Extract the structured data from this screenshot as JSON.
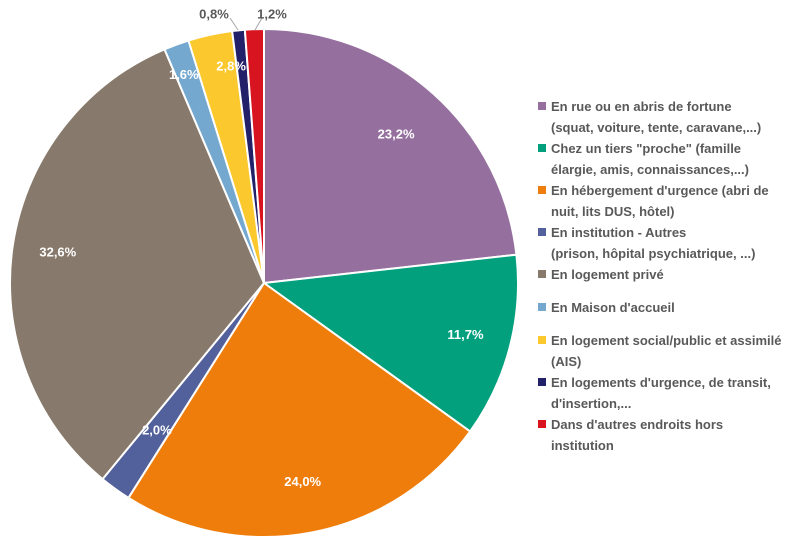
{
  "chart_data": {
    "type": "pie",
    "start": "top",
    "direction": "clockwise",
    "slices": [
      {
        "label": "En rue ou en abris de fortune (squat, voiture, tente, caravane,...)",
        "value": 23.2,
        "value_label": "23,2%",
        "color": "#95709e"
      },
      {
        "label": "Chez un tiers \"proche\" (famille élargie, amis, connaissances,...)",
        "value": 11.7,
        "value_label": "11,7%",
        "color": "#02a07d"
      },
      {
        "label": "En hébergement d'urgence (abri de nuit, lits DUS, hôtel)",
        "value": 24.0,
        "value_label": "24,0%",
        "color": "#ef7d0b"
      },
      {
        "label": "En institution - Autres (prison, hôpital psychiatrique, ...)",
        "value": 2.0,
        "value_label": "2,0%",
        "color": "#52609b"
      },
      {
        "label": "En logement privé",
        "value": 32.6,
        "value_label": "32,6%",
        "color": "#87796b"
      },
      {
        "label": "En Maison d'accueil",
        "value": 1.6,
        "value_label": "1,6%",
        "color": "#74a8cf"
      },
      {
        "label": "En logement social/public et assimilé (AIS)",
        "value": 2.8,
        "value_label": "2,8%",
        "color": "#fbc82d"
      },
      {
        "label": "En logements d'urgence, de transit, d'insertion,...",
        "value": 0.8,
        "value_label": "0,8%",
        "color": "#23206a"
      },
      {
        "label": "Dans d'autres endroits hors institution",
        "value": 1.2,
        "value_label": "1,2%",
        "color": "#d7141f"
      }
    ]
  },
  "legend": [
    {
      "lines": [
        "En rue ou en abris de fortune",
        "(squat, voiture, tente, caravane,...)"
      ],
      "color": "#95709e"
    },
    {
      "lines": [
        "Chez un tiers \"proche\" (famille",
        "élargie, amis, connaissances,...)"
      ],
      "color": "#02a07d"
    },
    {
      "lines": [
        "En hébergement d'urgence (abri de",
        "nuit, lits DUS, hôtel)"
      ],
      "color": "#ef7d0b"
    },
    {
      "lines": [
        "En institution - Autres",
        "(prison, hôpital psychiatrique, ...)"
      ],
      "color": "#52609b"
    },
    {
      "lines": [
        "En logement privé"
      ],
      "color": "#87796b"
    },
    {
      "lines": [
        "En Maison d'accueil"
      ],
      "color": "#74a8cf"
    },
    {
      "lines": [
        "En logement social/public et assimilé",
        "(AIS)"
      ],
      "color": "#fbc82d"
    },
    {
      "lines": [
        "En logements d'urgence, de transit,",
        "d'insertion,..."
      ],
      "color": "#23206a"
    },
    {
      "lines": [
        "Dans d'autres endroits hors",
        "institution"
      ],
      "color": "#d7141f"
    }
  ]
}
